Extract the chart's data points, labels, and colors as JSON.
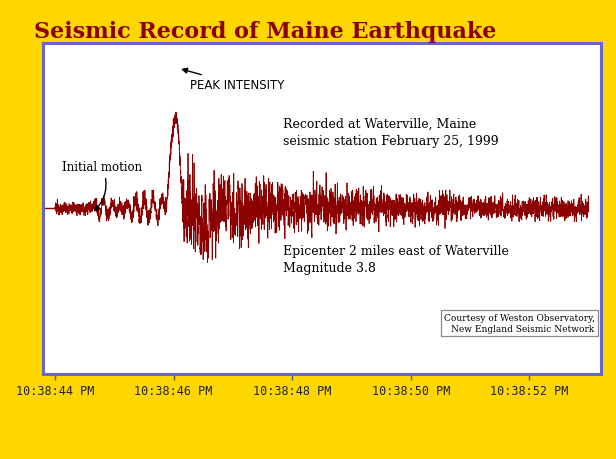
{
  "title": "Seismic Record of Maine Earthquake",
  "title_color": "#8B0000",
  "background_color": "#FFD700",
  "plot_bg_color": "#FFFFFF",
  "border_color": "#6666CC",
  "waveform_color": "#8B0000",
  "tick_labels": [
    "10:38:44 PM",
    "10:38:46 PM",
    "10:38:48 PM",
    "10:38:50 PM",
    "10:38:52 PM"
  ],
  "tick_positions": [
    0,
    2,
    4,
    6,
    8
  ],
  "annotation_initial_motion": "Initial motion",
  "annotation_peak": "PEAK INTENSITY",
  "annotation_recorded": "Recorded at Waterville, Maine\nseismic station February 25, 1999",
  "annotation_epicenter": "Epicenter 2 miles east of Waterville\nMagnitude 3.8",
  "annotation_courtesy": "Courtesy of Weston Observatory,\nNew England Seismic Network",
  "initial_motion_x": 0.62,
  "peak_x": 2.05,
  "xlim": [
    -0.2,
    9.2
  ],
  "ylim": [
    -1.3,
    1.3
  ]
}
